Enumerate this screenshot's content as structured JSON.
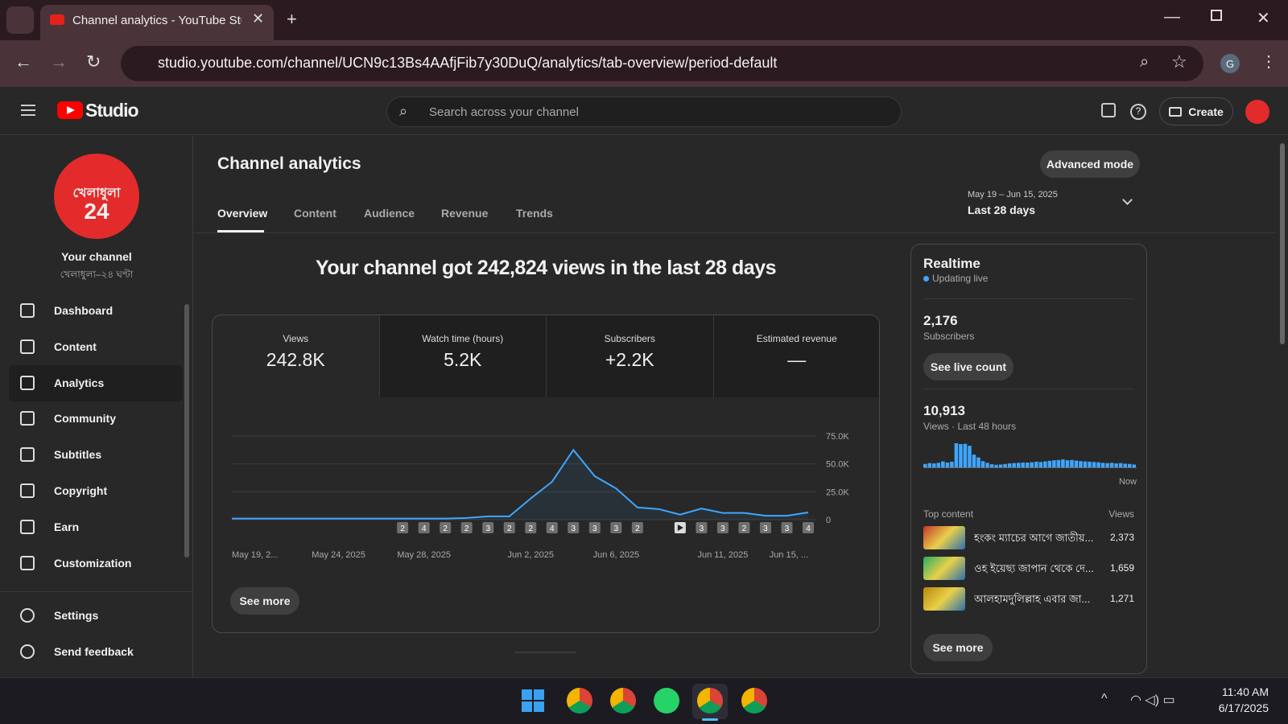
{
  "browser": {
    "tab_title": "Channel analytics - YouTube Stu",
    "url": "studio.youtube.com/channel/UCN9c13Bs4AAfjFib7y30DuQ/analytics/tab-overview/period-default",
    "profile": "G"
  },
  "header": {
    "logo": "Studio",
    "search_placeholder": "Search across your channel",
    "create": "Create"
  },
  "sidebar": {
    "avatar_text": [
      "খেলাধুলা",
      "24"
    ],
    "channel_label": "Your channel",
    "channel_name": "খেলাধুলা–২৪ ঘণ্টা",
    "nav": [
      "Dashboard",
      "Content",
      "Analytics",
      "Community",
      "Subtitles",
      "Copyright",
      "Earn",
      "Customization"
    ],
    "footer_nav": [
      "Settings",
      "Send feedback"
    ]
  },
  "main": {
    "title": "Channel analytics",
    "advanced_mode": "Advanced mode",
    "tabs": [
      "Overview",
      "Content",
      "Audience",
      "Revenue",
      "Trends"
    ],
    "date_range": "May 19 – Jun 15, 2025",
    "period": "Last 28 days",
    "headline": "Your channel got 242,824 views in the last 28 days",
    "metrics": [
      {
        "label": "Views",
        "value": "242.8K"
      },
      {
        "label": "Watch time (hours)",
        "value": "5.2K"
      },
      {
        "label": "Subscribers",
        "value": "+2.2K"
      },
      {
        "label": "Estimated revenue",
        "value": "—"
      }
    ],
    "see_more": "See more"
  },
  "chart_data": [
    {
      "type": "line",
      "color": "#3ea6ff",
      "categories": [
        "May 19, 2...",
        null,
        null,
        null,
        null,
        "May 24, 2025",
        null,
        null,
        null,
        "May 28, 2025",
        null,
        null,
        null,
        null,
        "Jun 2, 2025",
        null,
        null,
        null,
        "Jun 6, 2025",
        null,
        null,
        null,
        null,
        "Jun 11, 2025",
        null,
        null,
        null,
        "Jun 15, ..."
      ],
      "values": [
        1000,
        1000,
        1000,
        1000,
        1000,
        1000,
        1000,
        1000,
        1000,
        1000,
        1000,
        1500,
        3000,
        3000,
        19000,
        34000,
        62500,
        39000,
        28000,
        11000,
        9500,
        4500,
        10000,
        6000,
        6000,
        3500,
        3500,
        6500
      ],
      "markers": [
        null,
        null,
        null,
        null,
        null,
        null,
        null,
        null,
        2,
        4,
        2,
        2,
        3,
        2,
        2,
        4,
        3,
        3,
        3,
        2,
        null,
        null,
        3,
        3,
        2,
        3,
        3,
        4
      ],
      "ylim": [
        0,
        75000
      ],
      "yticks": [
        0,
        {
          "value": 25000,
          "label": "25.0K"
        },
        {
          "value": 50000,
          "label": "50.0K"
        },
        {
          "value": 75000,
          "label": "75.0K"
        }
      ],
      "grid": true
    },
    {
      "type": "bar",
      "color": "#3ea6ff",
      "categories": [
        null,
        null,
        null,
        null,
        null,
        null,
        null,
        null,
        null,
        null,
        null,
        null,
        null,
        null,
        null,
        null,
        null,
        null,
        null,
        null,
        null,
        null,
        null,
        null,
        null,
        null,
        null,
        null,
        null,
        null,
        null,
        null,
        null,
        null,
        null,
        null,
        null,
        null,
        null,
        null,
        null,
        null,
        null,
        null,
        null,
        null,
        null,
        "Now"
      ],
      "values": [
        120,
        150,
        140,
        160,
        210,
        170,
        200,
        850,
        820,
        830,
        760,
        450,
        350,
        220,
        160,
        110,
        90,
        100,
        120,
        140,
        150,
        160,
        170,
        170,
        180,
        200,
        190,
        210,
        230,
        250,
        260,
        280,
        250,
        260,
        240,
        220,
        210,
        200,
        190,
        180,
        160,
        150,
        160,
        140,
        150,
        130,
        120,
        100
      ]
    }
  ],
  "realtime": {
    "title": "Realtime",
    "status": "Updating live",
    "subscribers": "2,176",
    "subscribers_label": "Subscribers",
    "live_count": "See live count",
    "views": "10,913",
    "views_label": "Views · Last 48 hours",
    "top_content": "Top content",
    "views_header": "Views",
    "items": [
      {
        "title": "হংকং ম্যাচের আগে জাতীয়...",
        "views": "2,373"
      },
      {
        "title": "ওহ ইয়েছ্য জাপান থেকে দে...",
        "views": "1,659"
      },
      {
        "title": "আলহামদুলিল্লাহ এবার জা...",
        "views": "1,271"
      }
    ],
    "see_more": "See more"
  },
  "taskbar": {
    "time": "11:40 AM",
    "date": "6/17/2025"
  }
}
